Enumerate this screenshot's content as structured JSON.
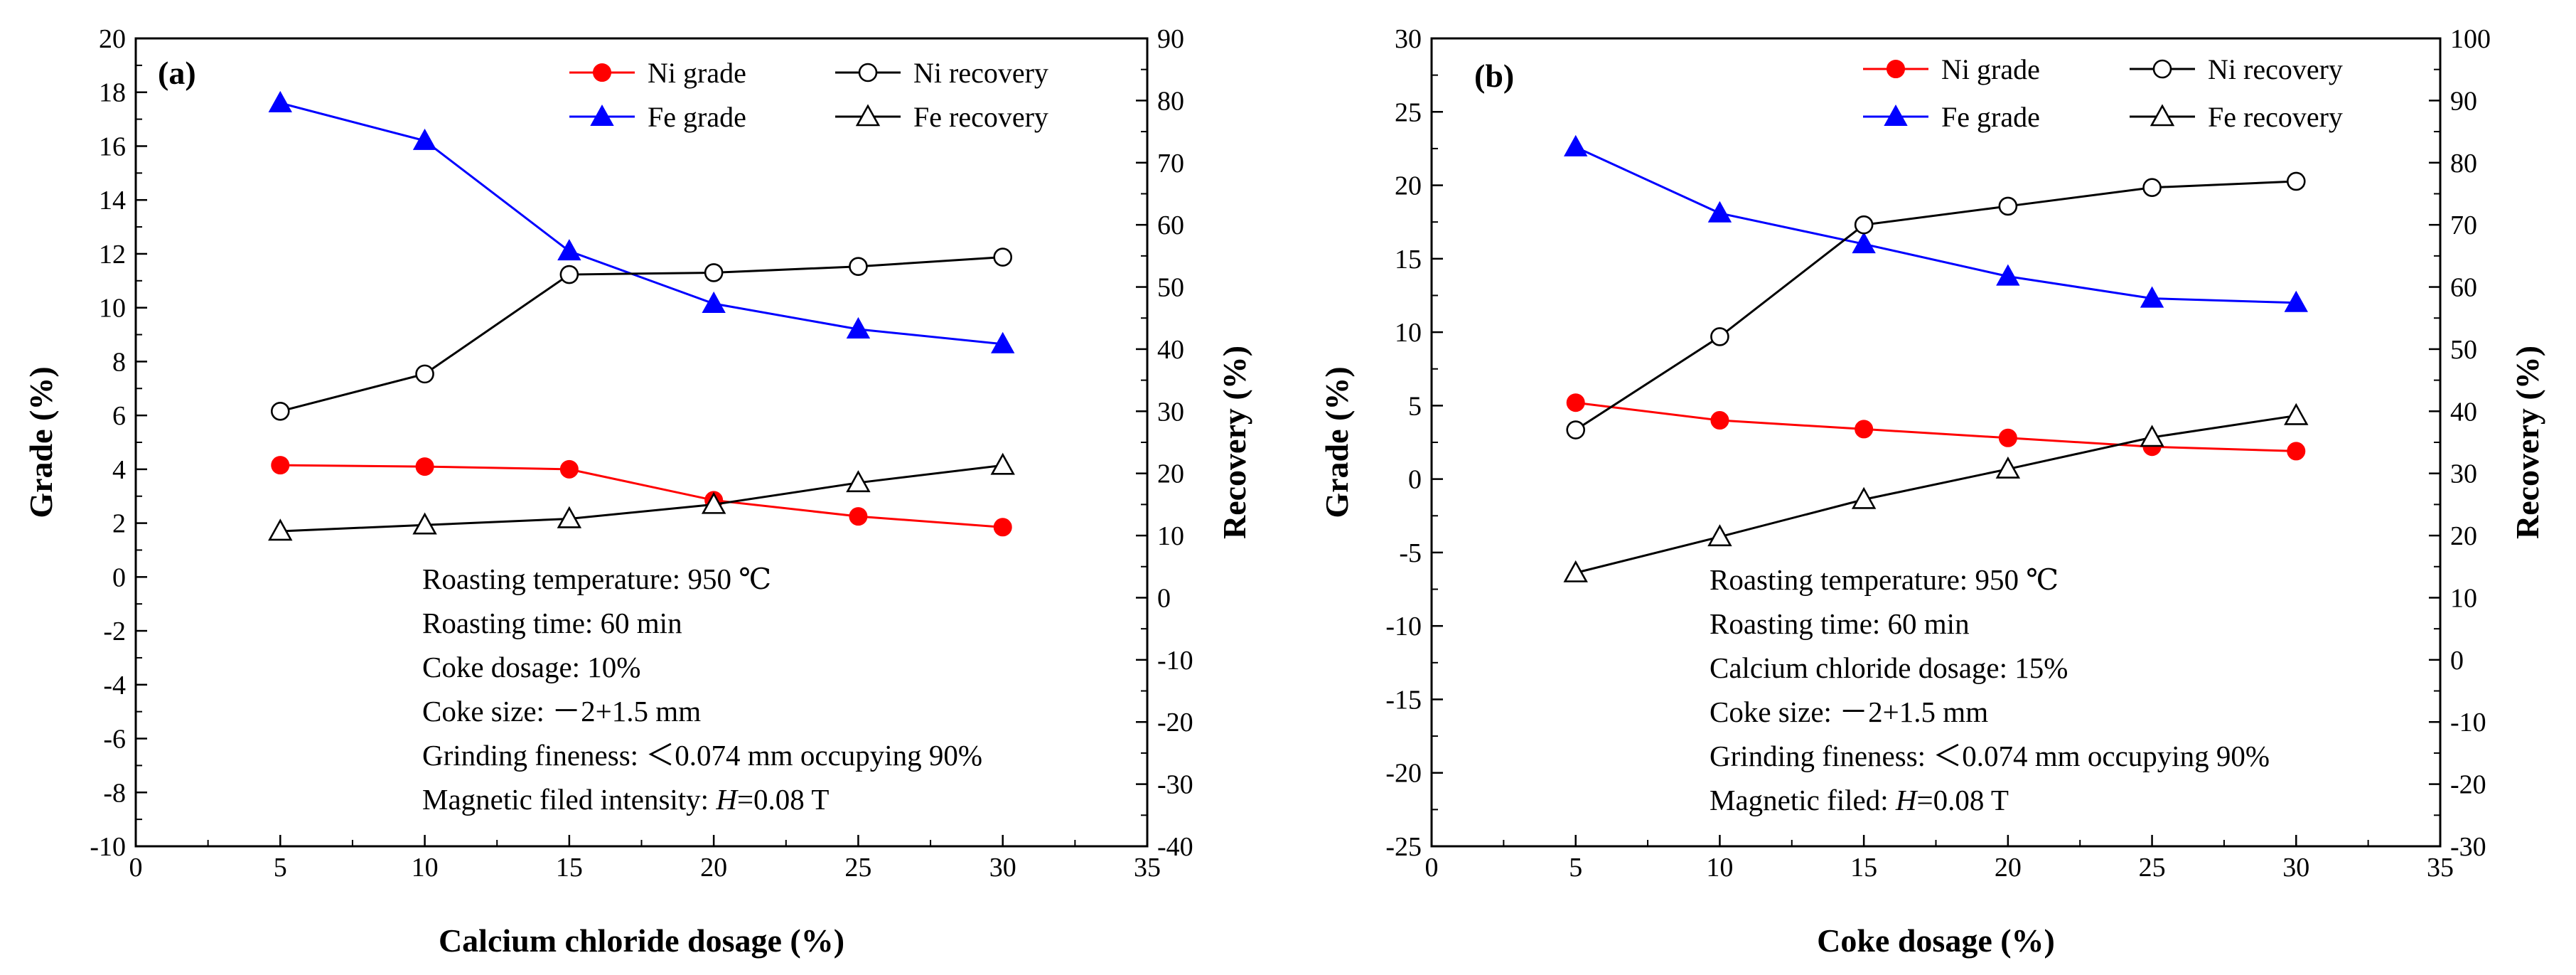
{
  "colors": {
    "ni_grade": "#ff0000",
    "fe_grade": "#0000ff",
    "recovery": "#000000",
    "axis": "#000000"
  },
  "chart_data": [
    {
      "type": "line",
      "panel_label": "(a)",
      "xlabel": "Calcium chloride dosage (%)",
      "ylabel_left": "Grade (%)",
      "ylabel_right": "Recovery (%)",
      "xlim": [
        0,
        35
      ],
      "ylim_left": [
        -10,
        20
      ],
      "ylim_right": [
        -40,
        90
      ],
      "x_ticks": [
        0,
        5,
        10,
        15,
        20,
        25,
        30,
        35
      ],
      "y_left_ticks": [
        -10,
        -8,
        -6,
        -4,
        -2,
        0,
        2,
        4,
        6,
        8,
        10,
        12,
        14,
        16,
        18,
        20
      ],
      "y_right_ticks": [
        -40,
        -30,
        -20,
        -10,
        0,
        10,
        20,
        30,
        40,
        50,
        60,
        70,
        80,
        90
      ],
      "x": [
        5,
        10,
        15,
        20,
        25,
        30
      ],
      "series": [
        {
          "name": "Ni grade",
          "axis": "left",
          "marker": "filled-circle",
          "color": "#ff0000",
          "values": [
            4.15,
            4.1,
            4.0,
            2.85,
            2.25,
            1.85
          ]
        },
        {
          "name": "Fe grade",
          "axis": "left",
          "marker": "filled-triangle",
          "color": "#0000ff",
          "values": [
            17.6,
            16.2,
            12.1,
            10.15,
            9.2,
            8.65
          ]
        },
        {
          "name": "Ni recovery",
          "axis": "right",
          "marker": "open-circle",
          "color": "#000000",
          "values": [
            30.0,
            36.0,
            52.0,
            52.3,
            53.3,
            54.8
          ]
        },
        {
          "name": "Fe recovery",
          "axis": "right",
          "marker": "open-triangle",
          "color": "#000000",
          "values": [
            10.7,
            11.7,
            12.7,
            15.0,
            18.5,
            21.3
          ]
        }
      ],
      "legend": {
        "position": "top-right",
        "items": [
          "Ni grade",
          "Ni recovery",
          "Fe grade",
          "Fe recovery"
        ]
      },
      "annotations": [
        {
          "text": "Roasting temperature: 950 ℃"
        },
        {
          "text": "Roasting time: 60 min"
        },
        {
          "text": "Coke dosage: 10%"
        },
        {
          "text": "Coke size: －2+1.5 mm"
        },
        {
          "text": "Grinding fineness: ＜0.074 mm occupying 90%"
        },
        {
          "text": "Magnetic filed intensity: ",
          "italic": "H",
          "suffix": "=0.08 T"
        }
      ]
    },
    {
      "type": "line",
      "panel_label": "(b)",
      "xlabel": "Coke dosage (%)",
      "ylabel_left": "Grade (%)",
      "ylabel_right": "Recovery (%)",
      "xlim": [
        0,
        35
      ],
      "ylim_left": [
        -25,
        30
      ],
      "ylim_right": [
        -30,
        100
      ],
      "x_ticks": [
        0,
        5,
        10,
        15,
        20,
        25,
        30,
        35
      ],
      "y_left_ticks": [
        -25,
        -20,
        -15,
        -10,
        -5,
        0,
        5,
        10,
        15,
        20,
        25,
        30
      ],
      "y_right_ticks": [
        -30,
        -20,
        -10,
        0,
        10,
        20,
        30,
        40,
        50,
        60,
        70,
        80,
        90,
        100
      ],
      "x": [
        5,
        10,
        15,
        20,
        25,
        30
      ],
      "series": [
        {
          "name": "Ni grade",
          "axis": "left",
          "marker": "filled-circle",
          "color": "#ff0000",
          "values": [
            5.2,
            4.0,
            3.4,
            2.8,
            2.2,
            1.9
          ]
        },
        {
          "name": "Fe grade",
          "axis": "left",
          "marker": "filled-triangle",
          "color": "#0000ff",
          "values": [
            22.6,
            18.1,
            16.0,
            13.8,
            12.3,
            12.0
          ]
        },
        {
          "name": "Ni recovery",
          "axis": "right",
          "marker": "open-circle",
          "color": "#000000",
          "values": [
            37.0,
            52.0,
            70.0,
            73.0,
            76.0,
            77.0
          ]
        },
        {
          "name": "Fe recovery",
          "axis": "right",
          "marker": "open-triangle",
          "color": "#000000",
          "values": [
            14.0,
            19.8,
            25.8,
            30.7,
            35.8,
            39.3
          ]
        }
      ],
      "legend": {
        "position": "top-right",
        "items": [
          "Ni grade",
          "Ni recovery",
          "Fe grade",
          "Fe recovery"
        ]
      },
      "annotations": [
        {
          "text": "Roasting temperature: 950 ℃"
        },
        {
          "text": "Roasting time: 60 min"
        },
        {
          "text": "Calcium chloride dosage: 15%"
        },
        {
          "text": "Coke size: －2+1.5 mm"
        },
        {
          "text": "Grinding fineness: ＜0.074 mm occupying 90%"
        },
        {
          "text": "Magnetic filed: ",
          "italic": "H",
          "suffix": "=0.08 T"
        }
      ]
    }
  ]
}
